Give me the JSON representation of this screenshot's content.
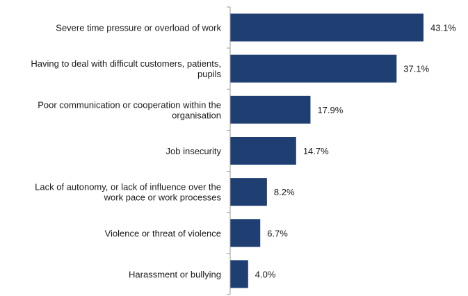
{
  "chart_data": {
    "type": "bar",
    "orientation": "horizontal",
    "title": "",
    "xlabel": "",
    "ylabel": "",
    "categories": [
      [
        "Severe time pressure or overload of work"
      ],
      [
        "Having to deal with difficult customers, patients,",
        "pupils"
      ],
      [
        "Poor communication or cooperation within the",
        "organisation"
      ],
      [
        "Job insecurity"
      ],
      [
        "Lack of autonomy, or lack of influence over the",
        "work pace or work processes"
      ],
      [
        "Violence or threat of violence"
      ],
      [
        "Harassment or bullying"
      ]
    ],
    "values": [
      43.1,
      37.1,
      17.9,
      14.7,
      8.2,
      6.7,
      4.0
    ],
    "value_labels": [
      "43.1%",
      "37.1%",
      "17.9%",
      "14.7%",
      "8.2%",
      "6.7%",
      "4.0%"
    ],
    "xlim": [
      0,
      45
    ],
    "grid": false,
    "legend": "none",
    "bar_color": "#1f3f73",
    "axis_color": "#9a9a9a"
  }
}
